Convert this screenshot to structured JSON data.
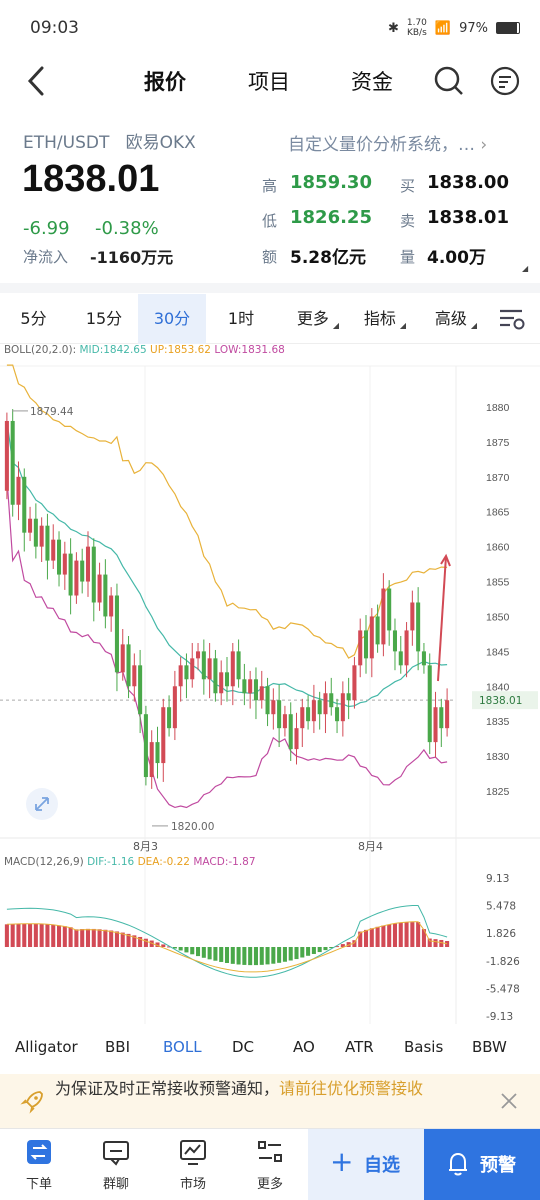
{
  "status_bar": {
    "time": "09:03",
    "net_speed": "1.70",
    "net_unit": "KB/s",
    "battery": "97%"
  },
  "nav": {
    "tabs": [
      "报价",
      "项目",
      "资金"
    ],
    "active": "报价"
  },
  "quote": {
    "symbol": "ETH/USDT",
    "exchange": "欧易OKX",
    "price": "1838.01",
    "change": "-6.99",
    "change_pct": "-0.38%",
    "net_inflow_label": "净流入",
    "net_inflow_value": "-1160万元",
    "custom_text": "自定义量价分析系统，…",
    "high_label": "高",
    "high": "1859.30",
    "low_label": "低",
    "low": "1826.25",
    "amount_label": "额",
    "amount": "5.28亿元",
    "bid_label": "买",
    "bid": "1838.00",
    "ask_label": "卖",
    "ask": "1838.01",
    "volume_label": "量",
    "volume": "4.00万"
  },
  "periods": [
    "5分",
    "15分",
    "30分",
    "1时",
    "更多",
    "指标",
    "高级"
  ],
  "active_period": "30分",
  "chart": {
    "boll_label": "BOLL(20,2.0):",
    "boll_mid": "MID:1842.65",
    "boll_up": "UP:1853.62",
    "boll_low": "LOW:1831.68",
    "price_ticks": [
      "1880",
      "1875",
      "1870",
      "1865",
      "1860",
      "1855",
      "1850",
      "1845",
      "1840",
      "1835",
      "1830",
      "1825"
    ],
    "current_price_tag": "1838.01",
    "max_annotation": "1879.44",
    "min_annotation": "1820.00",
    "date_labels": [
      "8月3",
      "8月4"
    ],
    "macd_label": "MACD(12,26,9)",
    "macd_dif": "DIF:-1.16",
    "macd_dea": "DEA:-0.22",
    "macd_val": "MACD:-1.87",
    "macd_ticks": [
      "9.13",
      "5.478",
      "1.826",
      "-1.826",
      "-5.478",
      "-9.13"
    ],
    "colors": {
      "up": "#d24a55",
      "down": "#4aa84a",
      "mid": "#45b8a8",
      "upper": "#e8b23a",
      "lower": "#c04aa0"
    }
  },
  "indicators": [
    "Alligator",
    "BBI",
    "BOLL",
    "DC",
    "AO",
    "ATR",
    "Basis",
    "BBW"
  ],
  "active_indicator": "BOLL",
  "notice": {
    "text": "为保证及时正常接收预警通知，",
    "link": "请前往优化预警接收"
  },
  "bottom_bar": {
    "items": [
      "下单",
      "群聊",
      "市场",
      "更多"
    ],
    "favorite": "自选",
    "alert": "预警"
  }
}
